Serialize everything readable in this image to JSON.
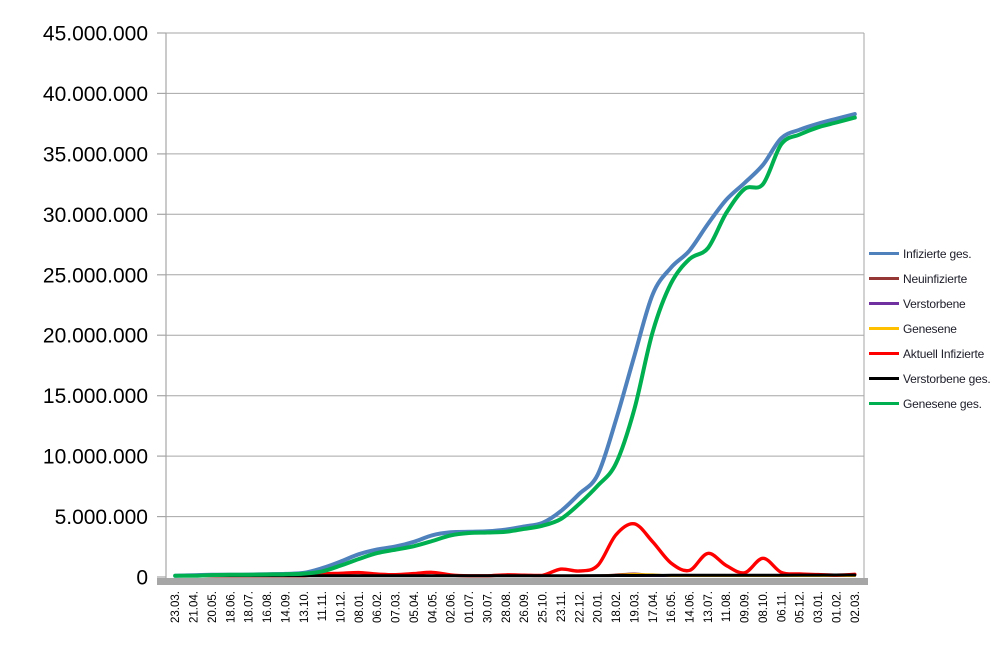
{
  "chart_data": {
    "type": "line",
    "title": "",
    "grid": true,
    "legend_position": "right",
    "value_unit": "millions",
    "ylim": [
      0,
      45000000
    ],
    "y_ticks": [
      "45.000.000",
      "40.000.000",
      "35.000.000",
      "30.000.000",
      "25.000.000",
      "20.000.000",
      "15.000.000",
      "10.000.000",
      "5.000.000",
      "0"
    ],
    "categories": [
      "23.03.",
      "21.04.",
      "20.05.",
      "18.06.",
      "18.07.",
      "16.08.",
      "14.09.",
      "13.10.",
      "11.11.",
      "10.12.",
      "08.01.",
      "06.02.",
      "07.03.",
      "05.04.",
      "04.05.",
      "02.06.",
      "01.07.",
      "30.07.",
      "28.08.",
      "26.09.",
      "25.10.",
      "23.11.",
      "22.12.",
      "20.01.",
      "18.02.",
      "19.03.",
      "17.04.",
      "16.05.",
      "14.06.",
      "13.07.",
      "11.08.",
      "09.09.",
      "08.10.",
      "06.11.",
      "05.12.",
      "03.01.",
      "01.02.",
      "02.03."
    ],
    "series": [
      {
        "name": "Infizierte ges.",
        "color": "#4F81BD",
        "values_millions": [
          0.03,
          0.15,
          0.18,
          0.19,
          0.2,
          0.23,
          0.26,
          0.34,
          0.73,
          1.27,
          1.89,
          2.28,
          2.52,
          2.91,
          3.45,
          3.7,
          3.74,
          3.78,
          3.92,
          4.18,
          4.48,
          5.45,
          6.88,
          8.46,
          13.0,
          18.3,
          23.4,
          25.6,
          27.0,
          29.2,
          31.2,
          32.6,
          34.1,
          36.3,
          37.0,
          37.5,
          37.9,
          38.3
        ]
      },
      {
        "name": "Neuinfizierte",
        "color": "#953735",
        "values_millions": [
          0.004,
          0.002,
          0.001,
          0.001,
          0.001,
          0.001,
          0.002,
          0.005,
          0.018,
          0.022,
          0.018,
          0.009,
          0.008,
          0.018,
          0.014,
          0.004,
          0.001,
          0.002,
          0.009,
          0.008,
          0.012,
          0.04,
          0.045,
          0.09,
          0.19,
          0.27,
          0.14,
          0.05,
          0.04,
          0.1,
          0.07,
          0.03,
          0.09,
          0.05,
          0.035,
          0.018,
          0.01,
          0.014
        ]
      },
      {
        "name": "Verstorbene",
        "color": "#7030A0",
        "values_millions": [
          0.0,
          0.001,
          0.0,
          0.0,
          0.0,
          0.0,
          0.0,
          0.0,
          0.001,
          0.003,
          0.004,
          0.004,
          0.002,
          0.001,
          0.001,
          0.001,
          0.0,
          0.0,
          0.0,
          0.0,
          0.001,
          0.001,
          0.002,
          0.001,
          0.001,
          0.001,
          0.001,
          0.001,
          0.0,
          0.001,
          0.001,
          0.0,
          0.001,
          0.001,
          0.001,
          0.001,
          0.001,
          0.001
        ]
      },
      {
        "name": "Genesene",
        "color": "#FFC000",
        "values_millions": [
          0.002,
          0.003,
          0.001,
          0.001,
          0.001,
          0.001,
          0.001,
          0.003,
          0.01,
          0.02,
          0.02,
          0.015,
          0.007,
          0.015,
          0.018,
          0.008,
          0.002,
          0.001,
          0.008,
          0.008,
          0.01,
          0.03,
          0.04,
          0.08,
          0.15,
          0.22,
          0.2,
          0.08,
          0.04,
          0.09,
          0.1,
          0.05,
          0.08,
          0.08,
          0.04,
          0.025,
          0.012,
          0.012
        ]
      },
      {
        "name": "Aktuell Infizierte",
        "color": "#FF0000",
        "values_millions": [
          0.02,
          0.05,
          0.02,
          0.01,
          0.01,
          0.02,
          0.03,
          0.06,
          0.26,
          0.31,
          0.36,
          0.24,
          0.19,
          0.28,
          0.38,
          0.17,
          0.05,
          0.08,
          0.17,
          0.15,
          0.14,
          0.65,
          0.5,
          0.95,
          3.5,
          4.4,
          2.9,
          1.15,
          0.55,
          1.95,
          0.95,
          0.35,
          1.55,
          0.38,
          0.25,
          0.2,
          0.15,
          0.22
        ]
      },
      {
        "name": "Verstorbene ges.",
        "color": "#000000",
        "values_millions": [
          0.0,
          0.005,
          0.008,
          0.009,
          0.009,
          0.009,
          0.009,
          0.01,
          0.012,
          0.021,
          0.039,
          0.061,
          0.072,
          0.077,
          0.084,
          0.089,
          0.091,
          0.092,
          0.092,
          0.093,
          0.095,
          0.1,
          0.109,
          0.116,
          0.121,
          0.126,
          0.132,
          0.137,
          0.14,
          0.142,
          0.144,
          0.147,
          0.15,
          0.153,
          0.157,
          0.161,
          0.165,
          0.168
        ]
      },
      {
        "name": "Genesene ges.",
        "color": "#00B050",
        "values_millions": [
          0.01,
          0.1,
          0.16,
          0.18,
          0.19,
          0.21,
          0.23,
          0.28,
          0.46,
          0.94,
          1.49,
          1.98,
          2.26,
          2.55,
          2.98,
          3.44,
          3.64,
          3.68,
          3.74,
          3.98,
          4.24,
          4.8,
          6.05,
          7.55,
          9.4,
          13.9,
          20.3,
          24.3,
          26.3,
          27.2,
          30.1,
          32.1,
          32.5,
          35.8,
          36.6,
          37.2,
          37.6,
          38.0
        ]
      }
    ]
  },
  "colors": {
    "gridline": "#A6A6A6",
    "axis": "#A6A6A6",
    "axis_bar": "#A6A6A6",
    "tick_text": "#000000",
    "legend_text": "#1C1C28",
    "background": "#FFFFFF"
  }
}
